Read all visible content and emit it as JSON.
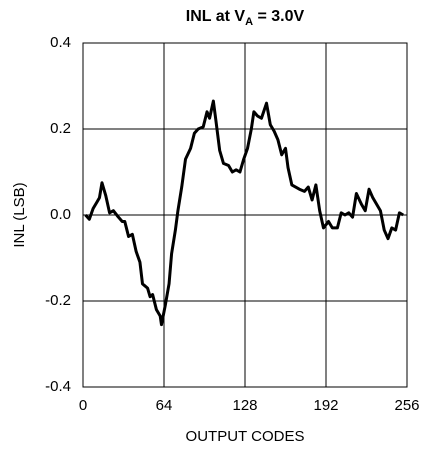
{
  "chart_data": {
    "type": "line",
    "title": {
      "text": "INL at V",
      "subscript": "A",
      "rest": " = 3.0V"
    },
    "xlabel": "OUTPUT CODES",
    "ylabel": "INL (LSB)",
    "xlim": [
      0,
      256
    ],
    "xticks": [
      0,
      64,
      128,
      192,
      256
    ],
    "ylim": [
      -0.4,
      0.4
    ],
    "yticks": [
      -0.4,
      -0.2,
      {
        "value": 0,
        "label": "0.0"
      },
      0.2,
      0.4
    ],
    "grid": true,
    "series": [
      {
        "color": "#000000",
        "x": [
          2,
          5,
          8,
          11,
          13,
          15,
          18,
          21,
          24,
          28,
          31,
          33,
          36,
          39,
          42,
          45,
          47,
          51,
          53,
          55,
          58,
          61,
          62,
          65,
          68,
          70,
          73,
          75,
          78,
          81,
          85,
          88,
          91,
          95,
          98,
          100,
          103,
          105,
          108,
          111,
          115,
          118,
          121,
          124,
          127,
          130,
          133,
          135,
          138,
          141,
          145,
          148,
          151,
          154,
          157,
          160,
          162,
          165,
          168,
          171,
          175,
          178,
          181,
          184,
          187,
          190,
          194,
          197,
          201,
          204,
          207,
          210,
          213,
          216,
          220,
          223,
          226,
          229,
          232,
          235,
          238,
          241,
          244,
          247,
          250,
          253
        ],
        "values": [
          0,
          -0.01,
          0.015,
          0.03,
          0.04,
          0.075,
          0.045,
          0.005,
          0.01,
          -0.005,
          -0.015,
          -0.015,
          -0.05,
          -0.045,
          -0.085,
          -0.11,
          -0.16,
          -0.17,
          -0.19,
          -0.185,
          -0.22,
          -0.235,
          -0.255,
          -0.21,
          -0.16,
          -0.09,
          -0.035,
          0.01,
          0.065,
          0.13,
          0.155,
          0.19,
          0.2,
          0.205,
          0.24,
          0.225,
          0.265,
          0.22,
          0.15,
          0.12,
          0.115,
          0.1,
          0.105,
          0.1,
          0.13,
          0.155,
          0.2,
          0.24,
          0.23,
          0.225,
          0.26,
          0.21,
          0.195,
          0.175,
          0.14,
          0.155,
          0.11,
          0.07,
          0.065,
          0.06,
          0.055,
          0.065,
          0.035,
          0.07,
          0.01,
          -0.03,
          -0.015,
          -0.03,
          -0.03,
          0.005,
          0,
          0.005,
          -0.005,
          0.05,
          0.025,
          0.01,
          0.06,
          0.04,
          0.025,
          0.01,
          -0.035,
          -0.055,
          -0.03,
          -0.035,
          0.005,
          0
        ]
      }
    ]
  }
}
